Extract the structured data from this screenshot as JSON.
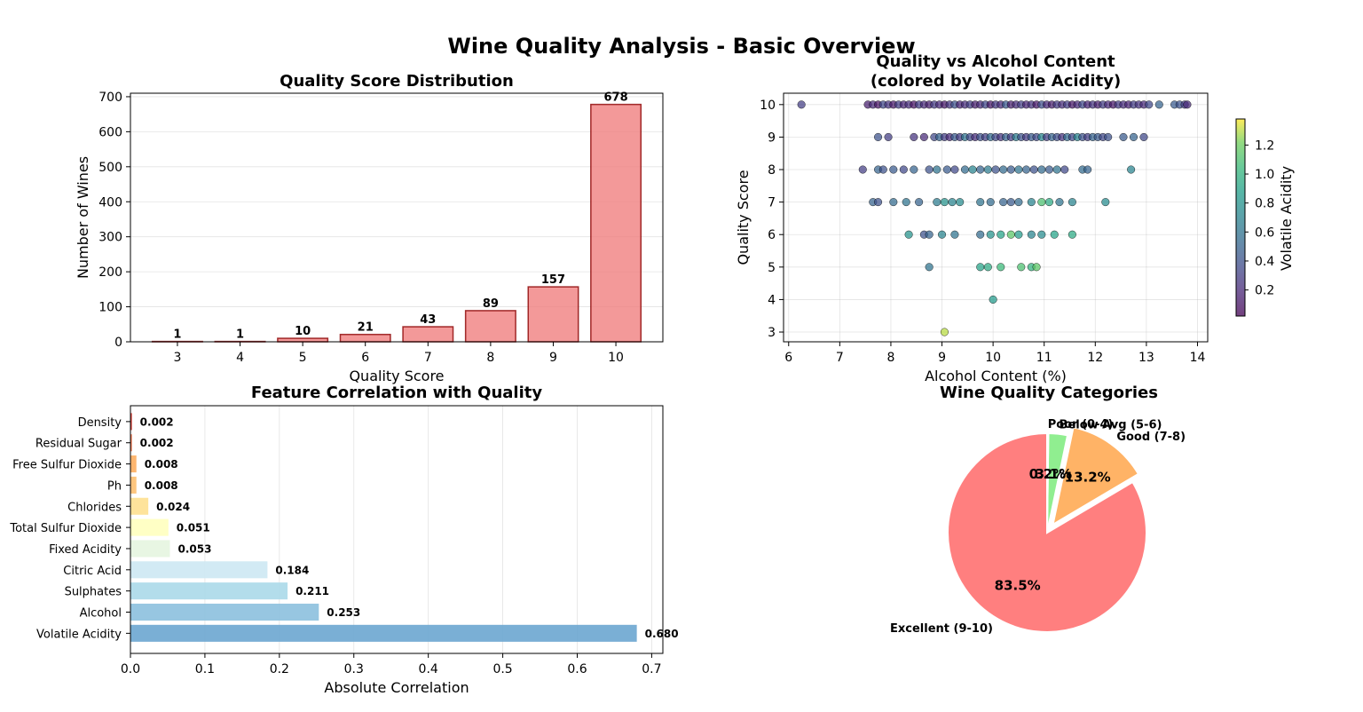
{
  "figure": {
    "title": "Wine Quality Analysis - Basic Overview"
  },
  "chart_data": [
    {
      "type": "bar",
      "title": "Quality Score Distribution",
      "xlabel": "Quality Score",
      "ylabel": "Number of Wines",
      "categories": [
        "3",
        "4",
        "5",
        "6",
        "7",
        "8",
        "9",
        "10"
      ],
      "values": [
        1,
        1,
        10,
        21,
        43,
        89,
        157,
        678
      ],
      "ylim": [
        0,
        710
      ],
      "yticks": [
        0,
        100,
        200,
        300,
        400,
        500,
        600,
        700
      ],
      "grid": true,
      "colors": {
        "fill": "#f08080",
        "edge": "#8b0000"
      }
    },
    {
      "type": "scatter",
      "title": "Quality vs Alcohol Content\n(colored by Volatile Acidity)",
      "xlabel": "Alcohol Content (%)",
      "ylabel": "Quality Score",
      "xlim": [
        5.9,
        14.2
      ],
      "ylim": [
        2.7,
        10.35
      ],
      "xticks": [
        6,
        7,
        8,
        9,
        10,
        11,
        12,
        13,
        14
      ],
      "yticks": [
        3,
        4,
        5,
        6,
        7,
        8,
        9,
        10
      ],
      "grid": true,
      "colorbar": {
        "label": "Volatile Acidity",
        "range": [
          0.02,
          1.38
        ],
        "ticks": [
          0.2,
          0.4,
          0.6,
          0.8,
          1.0,
          1.2
        ],
        "colormap": "viridis"
      },
      "points": [
        [
          6.25,
          10,
          0.3
        ],
        [
          7.55,
          10,
          0.15
        ],
        [
          7.65,
          10,
          0.2
        ],
        [
          7.75,
          10,
          0.1
        ],
        [
          7.85,
          10,
          0.35
        ],
        [
          7.95,
          10,
          0.25
        ],
        [
          8.05,
          10,
          0.12
        ],
        [
          8.15,
          10,
          0.3
        ],
        [
          8.25,
          10,
          0.18
        ],
        [
          8.35,
          10,
          0.22
        ],
        [
          8.45,
          10,
          0.1
        ],
        [
          8.55,
          10,
          0.3
        ],
        [
          8.65,
          10,
          0.2
        ],
        [
          8.75,
          10,
          0.15
        ],
        [
          8.85,
          10,
          0.28
        ],
        [
          8.95,
          10,
          0.2
        ],
        [
          9.05,
          10,
          0.12
        ],
        [
          9.15,
          10,
          0.25
        ],
        [
          9.25,
          10,
          0.4
        ],
        [
          9.35,
          10,
          0.18
        ],
        [
          9.45,
          10,
          0.22
        ],
        [
          9.55,
          10,
          0.3
        ],
        [
          9.65,
          10,
          0.15
        ],
        [
          9.75,
          10,
          0.2
        ],
        [
          9.85,
          10,
          0.35
        ],
        [
          9.95,
          10,
          0.12
        ],
        [
          10.05,
          10,
          0.28
        ],
        [
          10.15,
          10,
          0.2
        ],
        [
          10.25,
          10,
          0.45
        ],
        [
          10.35,
          10,
          0.15
        ],
        [
          10.45,
          10,
          0.22
        ],
        [
          10.55,
          10,
          0.3
        ],
        [
          10.65,
          10,
          0.18
        ],
        [
          10.75,
          10,
          0.25
        ],
        [
          10.85,
          10,
          0.12
        ],
        [
          10.95,
          10,
          0.38
        ],
        [
          11.05,
          10,
          0.2
        ],
        [
          11.15,
          10,
          0.15
        ],
        [
          11.25,
          10,
          0.28
        ],
        [
          11.35,
          10,
          0.22
        ],
        [
          11.45,
          10,
          0.3
        ],
        [
          11.55,
          10,
          0.12
        ],
        [
          11.65,
          10,
          0.2
        ],
        [
          11.75,
          10,
          0.35
        ],
        [
          11.85,
          10,
          0.18
        ],
        [
          11.95,
          10,
          0.25
        ],
        [
          12.05,
          10,
          0.15
        ],
        [
          12.15,
          10,
          0.3
        ],
        [
          12.25,
          10,
          0.2
        ],
        [
          12.35,
          10,
          0.12
        ],
        [
          12.45,
          10,
          0.28
        ],
        [
          12.55,
          10,
          0.22
        ],
        [
          12.65,
          10,
          0.18
        ],
        [
          12.75,
          10,
          0.3
        ],
        [
          12.85,
          10,
          0.25
        ],
        [
          12.95,
          10,
          0.2
        ],
        [
          13.05,
          10,
          0.35
        ],
        [
          13.25,
          10,
          0.5
        ],
        [
          13.55,
          10,
          0.45
        ],
        [
          13.65,
          10,
          0.4
        ],
        [
          13.75,
          10,
          0.3
        ],
        [
          13.8,
          10,
          0.2
        ],
        [
          7.75,
          9,
          0.4
        ],
        [
          7.95,
          9,
          0.3
        ],
        [
          8.45,
          9,
          0.25
        ],
        [
          8.65,
          9,
          0.2
        ],
        [
          8.85,
          9,
          0.35
        ],
        [
          8.95,
          9,
          0.5
        ],
        [
          9.05,
          9,
          0.3
        ],
        [
          9.15,
          9,
          0.2
        ],
        [
          9.25,
          9,
          0.45
        ],
        [
          9.35,
          9,
          0.28
        ],
        [
          9.45,
          9,
          0.6
        ],
        [
          9.55,
          9,
          0.35
        ],
        [
          9.65,
          9,
          0.22
        ],
        [
          9.75,
          9,
          0.4
        ],
        [
          9.85,
          9,
          0.3
        ],
        [
          9.95,
          9,
          0.55
        ],
        [
          10.05,
          9,
          0.35
        ],
        [
          10.15,
          9,
          0.25
        ],
        [
          10.25,
          9,
          0.5
        ],
        [
          10.35,
          9,
          0.3
        ],
        [
          10.45,
          9,
          0.65
        ],
        [
          10.55,
          9,
          0.4
        ],
        [
          10.65,
          9,
          0.28
        ],
        [
          10.75,
          9,
          0.45
        ],
        [
          10.85,
          9,
          0.35
        ],
        [
          10.95,
          9,
          0.7
        ],
        [
          11.05,
          9,
          0.3
        ],
        [
          11.15,
          9,
          0.5
        ],
        [
          11.25,
          9,
          0.38
        ],
        [
          11.35,
          9,
          0.25
        ],
        [
          11.45,
          9,
          0.55
        ],
        [
          11.55,
          9,
          0.35
        ],
        [
          11.65,
          9,
          0.7
        ],
        [
          11.75,
          9,
          0.4
        ],
        [
          11.85,
          9,
          0.3
        ],
        [
          11.95,
          9,
          0.5
        ],
        [
          12.05,
          9,
          0.45
        ],
        [
          12.15,
          9,
          0.35
        ],
        [
          12.25,
          9,
          0.4
        ],
        [
          12.55,
          9,
          0.45
        ],
        [
          12.75,
          9,
          0.5
        ],
        [
          12.95,
          9,
          0.35
        ],
        [
          7.45,
          8,
          0.3
        ],
        [
          7.75,
          8,
          0.5
        ],
        [
          7.85,
          8,
          0.4
        ],
        [
          8.05,
          8,
          0.45
        ],
        [
          8.25,
          8,
          0.35
        ],
        [
          8.45,
          8,
          0.5
        ],
        [
          8.75,
          8,
          0.4
        ],
        [
          8.9,
          8,
          0.6
        ],
        [
          9.1,
          8,
          0.45
        ],
        [
          9.25,
          8,
          0.35
        ],
        [
          9.45,
          8,
          0.55
        ],
        [
          9.6,
          8,
          0.7
        ],
        [
          9.75,
          8,
          0.5
        ],
        [
          9.9,
          8,
          0.65
        ],
        [
          10.05,
          8,
          0.4
        ],
        [
          10.2,
          8,
          0.55
        ],
        [
          10.35,
          8,
          0.45
        ],
        [
          10.5,
          8,
          0.6
        ],
        [
          10.65,
          8,
          0.5
        ],
        [
          10.8,
          8,
          0.4
        ],
        [
          10.95,
          8,
          0.55
        ],
        [
          11.1,
          8,
          0.45
        ],
        [
          11.25,
          8,
          0.6
        ],
        [
          11.4,
          8,
          0.35
        ],
        [
          11.75,
          8,
          0.55
        ],
        [
          11.85,
          8,
          0.5
        ],
        [
          12.7,
          8,
          0.7
        ],
        [
          7.65,
          7,
          0.5
        ],
        [
          7.75,
          7,
          0.4
        ],
        [
          8.05,
          7,
          0.55
        ],
        [
          8.3,
          7,
          0.6
        ],
        [
          8.55,
          7,
          0.5
        ],
        [
          8.9,
          7,
          0.65
        ],
        [
          9.05,
          7,
          0.8
        ],
        [
          9.2,
          7,
          0.7
        ],
        [
          9.35,
          7,
          0.75
        ],
        [
          9.75,
          7,
          0.6
        ],
        [
          9.95,
          7,
          0.55
        ],
        [
          10.2,
          7,
          0.5
        ],
        [
          10.35,
          7,
          0.45
        ],
        [
          10.5,
          7,
          0.55
        ],
        [
          10.75,
          7,
          0.7
        ],
        [
          10.95,
          7,
          1.1
        ],
        [
          11.1,
          7,
          0.95
        ],
        [
          11.3,
          7,
          0.6
        ],
        [
          11.55,
          7,
          0.7
        ],
        [
          12.2,
          7,
          0.75
        ],
        [
          8.35,
          6,
          0.8
        ],
        [
          8.65,
          6,
          0.4
        ],
        [
          8.75,
          6,
          0.5
        ],
        [
          9.0,
          6,
          0.7
        ],
        [
          9.25,
          6,
          0.6
        ],
        [
          9.75,
          6,
          0.55
        ],
        [
          9.95,
          6,
          0.8
        ],
        [
          10.15,
          6,
          0.9
        ],
        [
          10.35,
          6,
          1.15
        ],
        [
          10.5,
          6,
          0.85
        ],
        [
          10.75,
          6,
          0.7
        ],
        [
          10.95,
          6,
          0.75
        ],
        [
          11.2,
          6,
          0.9
        ],
        [
          11.55,
          6,
          0.95
        ],
        [
          8.75,
          5,
          0.6
        ],
        [
          9.75,
          5,
          0.9
        ],
        [
          9.9,
          5,
          0.95
        ],
        [
          10.15,
          5,
          1.05
        ],
        [
          10.55,
          5,
          1.1
        ],
        [
          10.75,
          5,
          1.0
        ],
        [
          10.85,
          5,
          1.15
        ],
        [
          10.0,
          4,
          0.85
        ],
        [
          9.05,
          3,
          1.3
        ]
      ]
    },
    {
      "type": "bar",
      "orientation": "horizontal",
      "title": "Feature Correlation with Quality",
      "xlabel": "Absolute Correlation",
      "xlim": [
        0,
        0.715
      ],
      "xticks": [
        "0.0",
        "0.1",
        "0.2",
        "0.3",
        "0.4",
        "0.5",
        "0.6",
        "0.7"
      ],
      "grid": true,
      "categories": [
        "Volatile Acidity",
        "Alcohol",
        "Sulphates",
        "Citric Acid",
        "Fixed Acidity",
        "Total Sulfur Dioxide",
        "Chlorides",
        "Ph",
        "Free Sulfur Dioxide",
        "Residual Sugar",
        "Density"
      ],
      "values": [
        0.68,
        0.253,
        0.211,
        0.184,
        0.053,
        0.051,
        0.024,
        0.008,
        0.008,
        0.002,
        0.002
      ],
      "labels": [
        "0.680",
        "0.253",
        "0.211",
        "0.184",
        "0.053",
        "0.051",
        "0.024",
        "0.008",
        "0.008",
        "0.002",
        "0.002"
      ],
      "colors": [
        "#6ba6d0",
        "#8cc0de",
        "#abd9e9",
        "#cde8f3",
        "#e6f5e0",
        "#ffffbf",
        "#fee090",
        "#fdbf70",
        "#fdae61",
        "#f46d43",
        "#d73027"
      ]
    },
    {
      "type": "pie",
      "title": "Wine Quality Categories",
      "labels": [
        "Excellent (9-10)",
        "Good (7-8)",
        "Below Avg (5-6)",
        "Poor (0-4)"
      ],
      "values": [
        83.5,
        13.2,
        3.1,
        0.2
      ],
      "pct_labels": [
        "83.5%",
        "13.2%",
        "3.1%",
        "0.2%"
      ],
      "explode": [
        0,
        0.1,
        0,
        0
      ],
      "colors": [
        "#ff7f7f",
        "#ffb366",
        "#90ee90",
        "#ffff99"
      ]
    }
  ]
}
